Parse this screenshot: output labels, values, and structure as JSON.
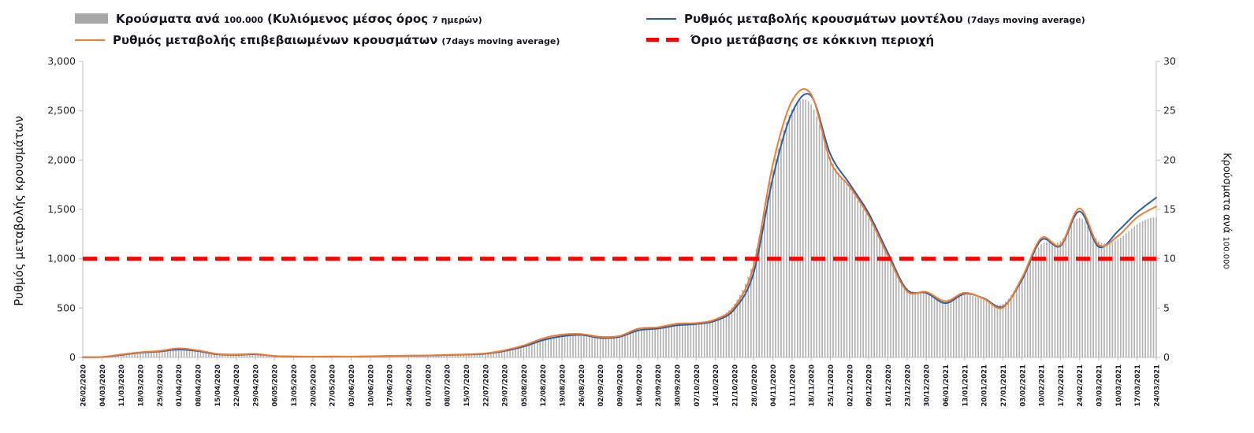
{
  "legend": {
    "bars": {
      "p1": "Κρούσματα ανά",
      "p2": "100.000",
      "p3": "(Κυλιόμενος μέσος όρος",
      "p4": "7 ημερών)"
    },
    "model": {
      "p1": "Ρυθμός μεταβολής κρουσμάτων μοντέλου",
      "p2": "(7days moving average)"
    },
    "confirmed": {
      "p1": "Ρυθμός μεταβολής επιβεβαιωμένων κρουσμάτων",
      "p2": "(7days moving average)"
    },
    "threshold": {
      "p1": "Όριο μετάβασης σε κόκκινη περιοχή"
    }
  },
  "axes": {
    "left_title": "Ρυθμός μεταβολής κρουσμάτων",
    "right_title_p1": "Κρούσματα ανά",
    "right_title_p2": "100.000"
  },
  "colors": {
    "bar": "#b3b3b3",
    "model_line": "#2e5fa5",
    "confirmed_line": "#ed7d31",
    "threshold": "#ff0000",
    "axis": "#bfbfbf"
  },
  "chart_data": {
    "type": "bar",
    "title": "",
    "xlabel": "",
    "ylabel_left": "Ρυθμός μεταβολής κρουσμάτων",
    "ylabel_right": "Κρούσματα ανά 100.000",
    "legend_position": "top",
    "grid": false,
    "categories": [
      "26/02/2020",
      "04/03/2020",
      "11/03/2020",
      "18/03/2020",
      "25/03/2020",
      "01/04/2020",
      "08/04/2020",
      "15/04/2020",
      "22/04/2020",
      "29/04/2020",
      "06/05/2020",
      "13/05/2020",
      "20/05/2020",
      "27/05/2020",
      "03/06/2020",
      "10/06/2020",
      "17/06/2020",
      "24/06/2020",
      "01/07/2020",
      "08/07/2020",
      "15/07/2020",
      "22/07/2020",
      "29/07/2020",
      "05/08/2020",
      "12/08/2020",
      "19/08/2020",
      "26/08/2020",
      "02/09/2020",
      "09/09/2020",
      "16/09/2020",
      "23/09/2020",
      "30/09/2020",
      "07/10/2020",
      "14/10/2020",
      "21/10/2020",
      "28/10/2020",
      "04/11/2020",
      "11/11/2020",
      "18/11/2020",
      "25/11/2020",
      "02/12/2020",
      "09/12/2020",
      "16/12/2020",
      "23/12/2020",
      "30/12/2020",
      "06/01/2021",
      "13/01/2021",
      "20/01/2021",
      "27/01/2021",
      "03/02/2021",
      "10/02/2021",
      "17/02/2021",
      "24/02/2021",
      "03/03/2021",
      "10/03/2021",
      "17/03/2021",
      "24/03/2021"
    ],
    "y_left": {
      "min": 0,
      "max": 3000,
      "ticks": [
        "0",
        "500",
        "1,000",
        "1,500",
        "2,000",
        "2,500",
        "3,000"
      ],
      "tick_values": [
        0,
        500,
        1000,
        1500,
        2000,
        2500,
        3000
      ]
    },
    "y_right": {
      "min": 0,
      "max": 30,
      "ticks": [
        "0",
        "5",
        "10",
        "15",
        "20",
        "25",
        "30"
      ],
      "tick_values": [
        0,
        5,
        10,
        15,
        20,
        25,
        30
      ]
    },
    "series": [
      {
        "name": "Κρούσματα ανά 100.000 (Κυλιόμενος μέσος όρος 7 ημερών)",
        "type": "bar",
        "axis": "right",
        "color": "#b3b3b3",
        "values": [
          0.02,
          0.05,
          0.3,
          0.5,
          0.65,
          0.9,
          0.7,
          0.35,
          0.3,
          0.35,
          0.15,
          0.1,
          0.08,
          0.1,
          0.08,
          0.12,
          0.15,
          0.18,
          0.2,
          0.25,
          0.3,
          0.4,
          0.7,
          1.2,
          1.9,
          2.3,
          2.35,
          2.05,
          2.15,
          2.9,
          3.0,
          3.4,
          3.45,
          3.8,
          5.1,
          9.2,
          19.5,
          25.8,
          26.5,
          19.8,
          17.2,
          14.2,
          10.2,
          6.6,
          6.6,
          5.6,
          6.5,
          5.9,
          5.0,
          8.0,
          12.0,
          11.3,
          15.0,
          11.3,
          11.8,
          13.6,
          14.4
        ]
      },
      {
        "name": "Ρυθμός μεταβολής κρουσμάτων μοντέλου (7days moving average)",
        "type": "line",
        "axis": "left",
        "color": "#2e5fa5",
        "values": [
          2,
          4,
          25,
          48,
          60,
          80,
          65,
          32,
          26,
          32,
          14,
          9,
          8,
          9,
          8,
          11,
          14,
          17,
          19,
          24,
          29,
          37,
          65,
          110,
          175,
          215,
          228,
          198,
          208,
          275,
          292,
          325,
          338,
          372,
          490,
          860,
          1820,
          2480,
          2650,
          2060,
          1760,
          1460,
          1060,
          685,
          655,
          550,
          645,
          600,
          515,
          790,
          1190,
          1130,
          1480,
          1120,
          1280,
          1470,
          1620
        ]
      },
      {
        "name": "Ρυθμός μεταβολής επιβεβαιωμένων κρουσμάτων (7days moving average)",
        "type": "line",
        "axis": "left",
        "color": "#ed7d31",
        "values": [
          2,
          5,
          30,
          52,
          66,
          92,
          72,
          36,
          30,
          36,
          15,
          10,
          8,
          10,
          8,
          12,
          15,
          18,
          20,
          26,
          31,
          41,
          72,
          122,
          192,
          232,
          238,
          208,
          218,
          292,
          305,
          342,
          348,
          385,
          515,
          930,
          1960,
          2600,
          2665,
          1990,
          1730,
          1430,
          1030,
          670,
          665,
          570,
          655,
          595,
          505,
          810,
          1210,
          1140,
          1510,
          1140,
          1230,
          1420,
          1530
        ]
      },
      {
        "name": "Όριο μετάβασης σε κόκκινη περιοχή",
        "type": "threshold",
        "axis": "left",
        "color": "#ff0000",
        "value": 1000
      }
    ]
  }
}
